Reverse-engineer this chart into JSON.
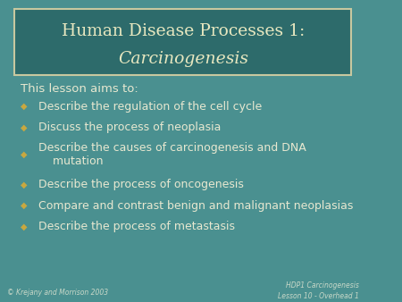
{
  "title_line1": "Human Disease Processes 1:",
  "title_line2": "Carcinogenesis",
  "intro": "This lesson aims to:",
  "bullets": [
    "Describe the regulation of the cell cycle",
    "Discuss the process of neoplasia",
    "Describe the causes of carcinogenesis and DNA\n    mutation",
    "Describe the process of oncogenesis",
    "Compare and contrast benign and malignant neoplasias",
    "Describe the process of metastasis"
  ],
  "footer_left": "© Krejany and Morrison 2003",
  "footer_right_line1": "HDP1 Carcinogenesis",
  "footer_right_line2": "Lesson 10 - Overhead 1",
  "bg_color": "#4a9090",
  "title_box_bg": "#2d6b6b",
  "title_box_border": "#c8c8a0",
  "title_color": "#e8e8c0",
  "title_italic_color": "#e8e8c0",
  "text_color": "#e8e8d0",
  "bullet_color": "#c8a840",
  "footer_color": "#c8d8c8"
}
